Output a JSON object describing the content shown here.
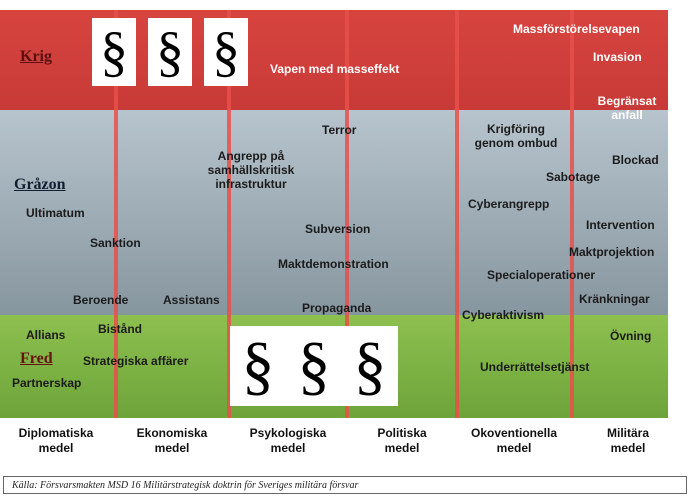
{
  "zones": {
    "krig": "Krig",
    "grazon": "Gråzon",
    "fred": "Fred"
  },
  "paragraph_symbol": "§",
  "krig_items": {
    "vapen": "Vapen med masseffekt",
    "massforstorelse": "Massförstörelsevapen",
    "invasion": "Invasion",
    "begransat": "Begränsat anfall"
  },
  "grazon_items": {
    "terror": "Terror",
    "angrepp": "Angrepp på samhällskritisk infrastruktur",
    "ultimatum": "Ultimatum",
    "sanktion": "Sanktion",
    "subversion": "Subversion",
    "maktdemonstration": "Maktdemonstration",
    "beroende": "Beroende",
    "assistans": "Assistans",
    "propaganda": "Propaganda",
    "krigforing": "Krigföring genom ombud",
    "blockad": "Blockad",
    "sabotage": "Sabotage",
    "cyberangrepp": "Cyberangrepp",
    "intervention": "Intervention",
    "maktprojektion": "Maktprojektion",
    "specialoperationer": "Specialoperationer",
    "krankningar": "Kränkningar",
    "cyberaktivism": "Cyberaktivism"
  },
  "fred_items": {
    "allians": "Allians",
    "bistand": "Bistånd",
    "strategiska": "Strategiska affärer",
    "partnerskap": "Partnerskap",
    "ovning": "Övning",
    "underrattelse": "Underrättelsetjänst"
  },
  "axis_labels": [
    "Diplomatiska medel",
    "Ekonomiska medel",
    "Psykologiska medel",
    "Politiska medel",
    "Okoventionella medel",
    "Militära medel"
  ],
  "footer": "Källa: Försvarsmakten     MSD 16     Militärstrategisk doktrin för Sveriges militära försvar",
  "colors": {
    "krig": "#d7443f",
    "grazon": "#9aa8b1",
    "fred": "#7db246",
    "column_line": "#e8504a"
  }
}
